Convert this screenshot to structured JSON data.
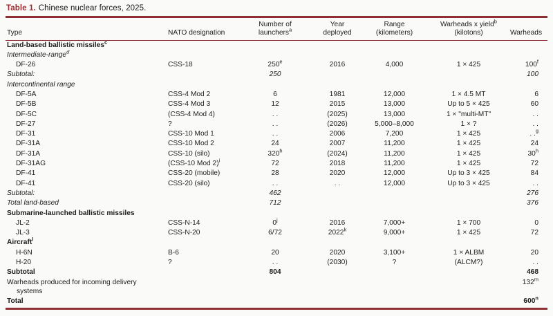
{
  "title": {
    "label": "Table 1.",
    "text": "Chinese nuclear forces, 2025."
  },
  "colors": {
    "accent": "#a12b2e",
    "rule": "#8e2f33",
    "text": "#1c1c1c",
    "background": "#fafaf8"
  },
  "table": {
    "column_keys": [
      "type",
      "nato-designation",
      "launchers",
      "year-deployed",
      "range",
      "warheads-yield",
      "warheads"
    ],
    "headers": [
      {
        "line1": "",
        "line2": "Type"
      },
      {
        "line1": "",
        "line2": "NATO designation"
      },
      {
        "line1": "Number of",
        "line2": "launchers^a"
      },
      {
        "line1": "Year",
        "line2": "deployed"
      },
      {
        "line1": "Range",
        "line2": "(kilometers)"
      },
      {
        "line1": "Warheads x yield^b",
        "line2": "(kilotons)"
      },
      {
        "line1": "",
        "line2": "Warheads"
      }
    ],
    "rows": [
      {
        "style": "section",
        "cells": [
          "Land-based ballistic missiles^c",
          "",
          "",
          "",
          "",
          "",
          ""
        ]
      },
      {
        "style": "italic",
        "cells": [
          "Intermediate-range^d",
          "",
          "",
          "",
          "",
          "",
          ""
        ]
      },
      {
        "style": "data",
        "cells": [
          "DF-26",
          "CSS-18",
          "250^e",
          "2016",
          "4,000",
          "1 × 425",
          "100^f"
        ]
      },
      {
        "style": "italic",
        "cells": [
          "Subtotal:",
          "",
          "250",
          "",
          "",
          "",
          "100"
        ]
      },
      {
        "style": "italic",
        "cells": [
          "Intercontinental range",
          "",
          "",
          "",
          "",
          "",
          ""
        ]
      },
      {
        "style": "data",
        "cells": [
          "DF-5A",
          "CSS-4 Mod 2",
          "6",
          "1981",
          "12,000",
          "1 × 4.5 MT",
          "6"
        ]
      },
      {
        "style": "data",
        "cells": [
          "DF-5B",
          "CSS-4 Mod 3",
          "12",
          "2015",
          "13,000",
          "Up to 5 × 425",
          "60"
        ]
      },
      {
        "style": "data",
        "cells": [
          "DF-5C",
          "(CSS-4 Mod 4)",
          ". .",
          "(2025)",
          "13,000",
          "1 × \"multi-MT\"",
          ". ."
        ]
      },
      {
        "style": "data",
        "cells": [
          "DF-27",
          "?",
          ". .",
          "(2026)",
          "5,000–8,000",
          "1 × ?",
          ". ."
        ]
      },
      {
        "style": "data",
        "cells": [
          "DF-31",
          "CSS-10 Mod 1",
          ". .",
          "2006",
          "7,200",
          "1 × 425",
          ". .^g"
        ]
      },
      {
        "style": "data",
        "cells": [
          "DF-31A",
          "CSS-10 Mod 2",
          "24",
          "2007",
          "11,200",
          "1 × 425",
          "24"
        ]
      },
      {
        "style": "data",
        "cells": [
          "DF-31A",
          "CSS-10 (silo)",
          "320^h",
          "(2024)",
          "11,200",
          "1 × 425",
          "30^h"
        ]
      },
      {
        "style": "data",
        "cells": [
          "DF-31AG",
          "(CSS-10 Mod 2)^i",
          "72",
          "2018",
          "11,200",
          "1 × 425",
          "72"
        ]
      },
      {
        "style": "data",
        "cells": [
          "DF-41",
          "CSS-20 (mobile)",
          "28",
          "2020",
          "12,000",
          "Up to 3 × 425",
          "84"
        ]
      },
      {
        "style": "data",
        "cells": [
          "DF-41",
          "CSS-20 (silo)",
          ". .",
          ". .",
          "12,000",
          "Up to 3 × 425",
          ". ."
        ]
      },
      {
        "style": "italic",
        "cells": [
          "Subtotal:",
          "",
          "462",
          "",
          "",
          "",
          "276"
        ]
      },
      {
        "style": "italic",
        "cells": [
          "Total land-based",
          "",
          "712",
          "",
          "",
          "",
          "376"
        ]
      },
      {
        "style": "section",
        "cells": [
          "Submarine-launched ballistic missiles",
          "",
          "",
          "",
          "",
          "",
          ""
        ]
      },
      {
        "style": "data",
        "cells": [
          "JL-2",
          "CSS-N-14",
          "0^j",
          "2016",
          "7,000+",
          "1 × 700",
          "0"
        ]
      },
      {
        "style": "data",
        "cells": [
          "JL-3",
          "CSS-N-20",
          "6/72",
          "2022^k",
          "9,000+",
          "1 × 425",
          "72"
        ]
      },
      {
        "style": "section",
        "cells": [
          "Aircraft^l",
          "",
          "",
          "",
          "",
          "",
          ""
        ]
      },
      {
        "style": "data",
        "cells": [
          "H-6N",
          "B-6",
          "20",
          "2020",
          "3,100+",
          "1 × ALBM",
          "20"
        ]
      },
      {
        "style": "data",
        "cells": [
          "H-20",
          "?",
          ". .",
          "(2030)",
          "?",
          "(ALCM?)",
          ". ."
        ]
      },
      {
        "style": "bold",
        "cells": [
          "Subtotal",
          "",
          "804",
          "",
          "",
          "",
          "468"
        ]
      },
      {
        "style": "normal",
        "cells": [
          "Warheads produced for incoming delivery systems",
          "",
          "",
          "",
          "",
          "",
          "132^m"
        ]
      },
      {
        "style": "bold",
        "cells": [
          "Total",
          "",
          "",
          "",
          "",
          "",
          "600^n"
        ]
      }
    ]
  }
}
